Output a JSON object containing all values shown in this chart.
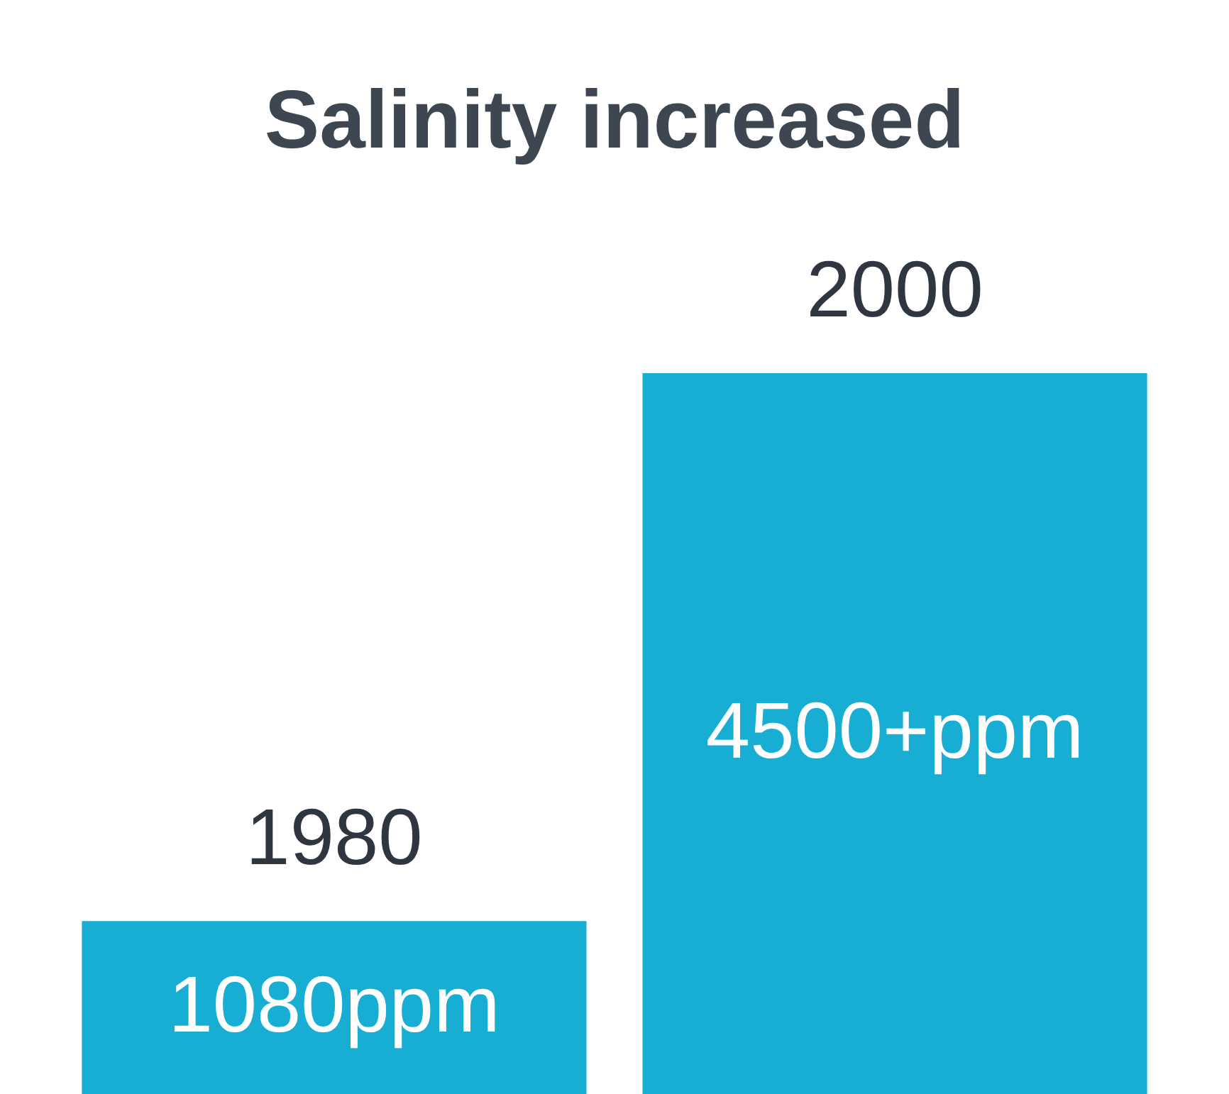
{
  "chart_data": {
    "type": "bar",
    "title": "Salinity increased",
    "categories": [
      "1980",
      "2000"
    ],
    "values": [
      1080,
      4500
    ],
    "value_labels": [
      "1080ppm",
      "4500+ppm"
    ],
    "color": "#18aed4"
  }
}
